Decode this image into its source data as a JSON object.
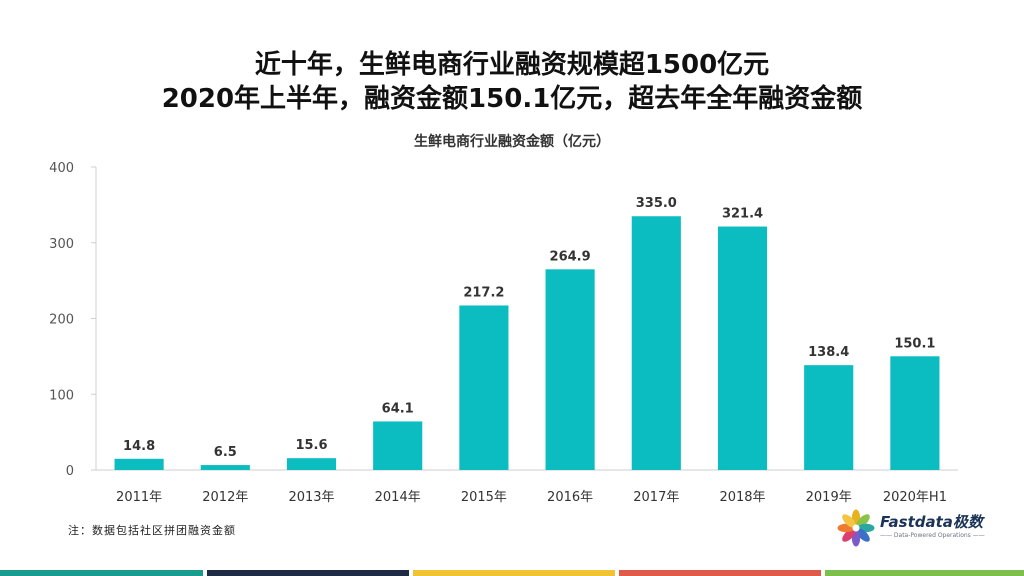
{
  "headline": {
    "line1": "近十年，生鲜电商行业融资规模超1500亿元",
    "line2": "2020年上半年，融资金额150.1亿元，超去年全年融资金额"
  },
  "note": "注：数据包括社区拼团融资金额",
  "logo": {
    "name": "Fastdata极数",
    "tagline": "—— Data-Powered Operations ——",
    "petal_colors": [
      "#e8b21f",
      "#8bc34a",
      "#2aa7a1",
      "#3b6fc9",
      "#7a5bc7",
      "#d9406f",
      "#ef7b30",
      "#f4c542"
    ]
  },
  "footer_colors": [
    "#1a9b8f",
    "#1f2a44",
    "#f1c232",
    "#e05a4a",
    "#7cbf4a"
  ],
  "chart_data": {
    "type": "bar",
    "title": "生鲜电商行业融资金额（亿元）",
    "categories": [
      "2011年",
      "2012年",
      "2013年",
      "2014年",
      "2015年",
      "2016年",
      "2017年",
      "2018年",
      "2019年",
      "2020年H1"
    ],
    "values": [
      14.8,
      6.5,
      15.6,
      64.1,
      217.2,
      264.9,
      335.0,
      321.4,
      138.4,
      150.1
    ],
    "value_labels": [
      "14.8",
      "6.5",
      "15.6",
      "64.1",
      "217.2",
      "264.9",
      "335.0",
      "321.4",
      "138.4",
      "150.1"
    ],
    "ylim": [
      0,
      400
    ],
    "yticks": [
      "0",
      "100",
      "200",
      "300",
      "400"
    ],
    "bar_color": "#0bbcc0",
    "grid": false,
    "xlabel": "",
    "ylabel": ""
  }
}
